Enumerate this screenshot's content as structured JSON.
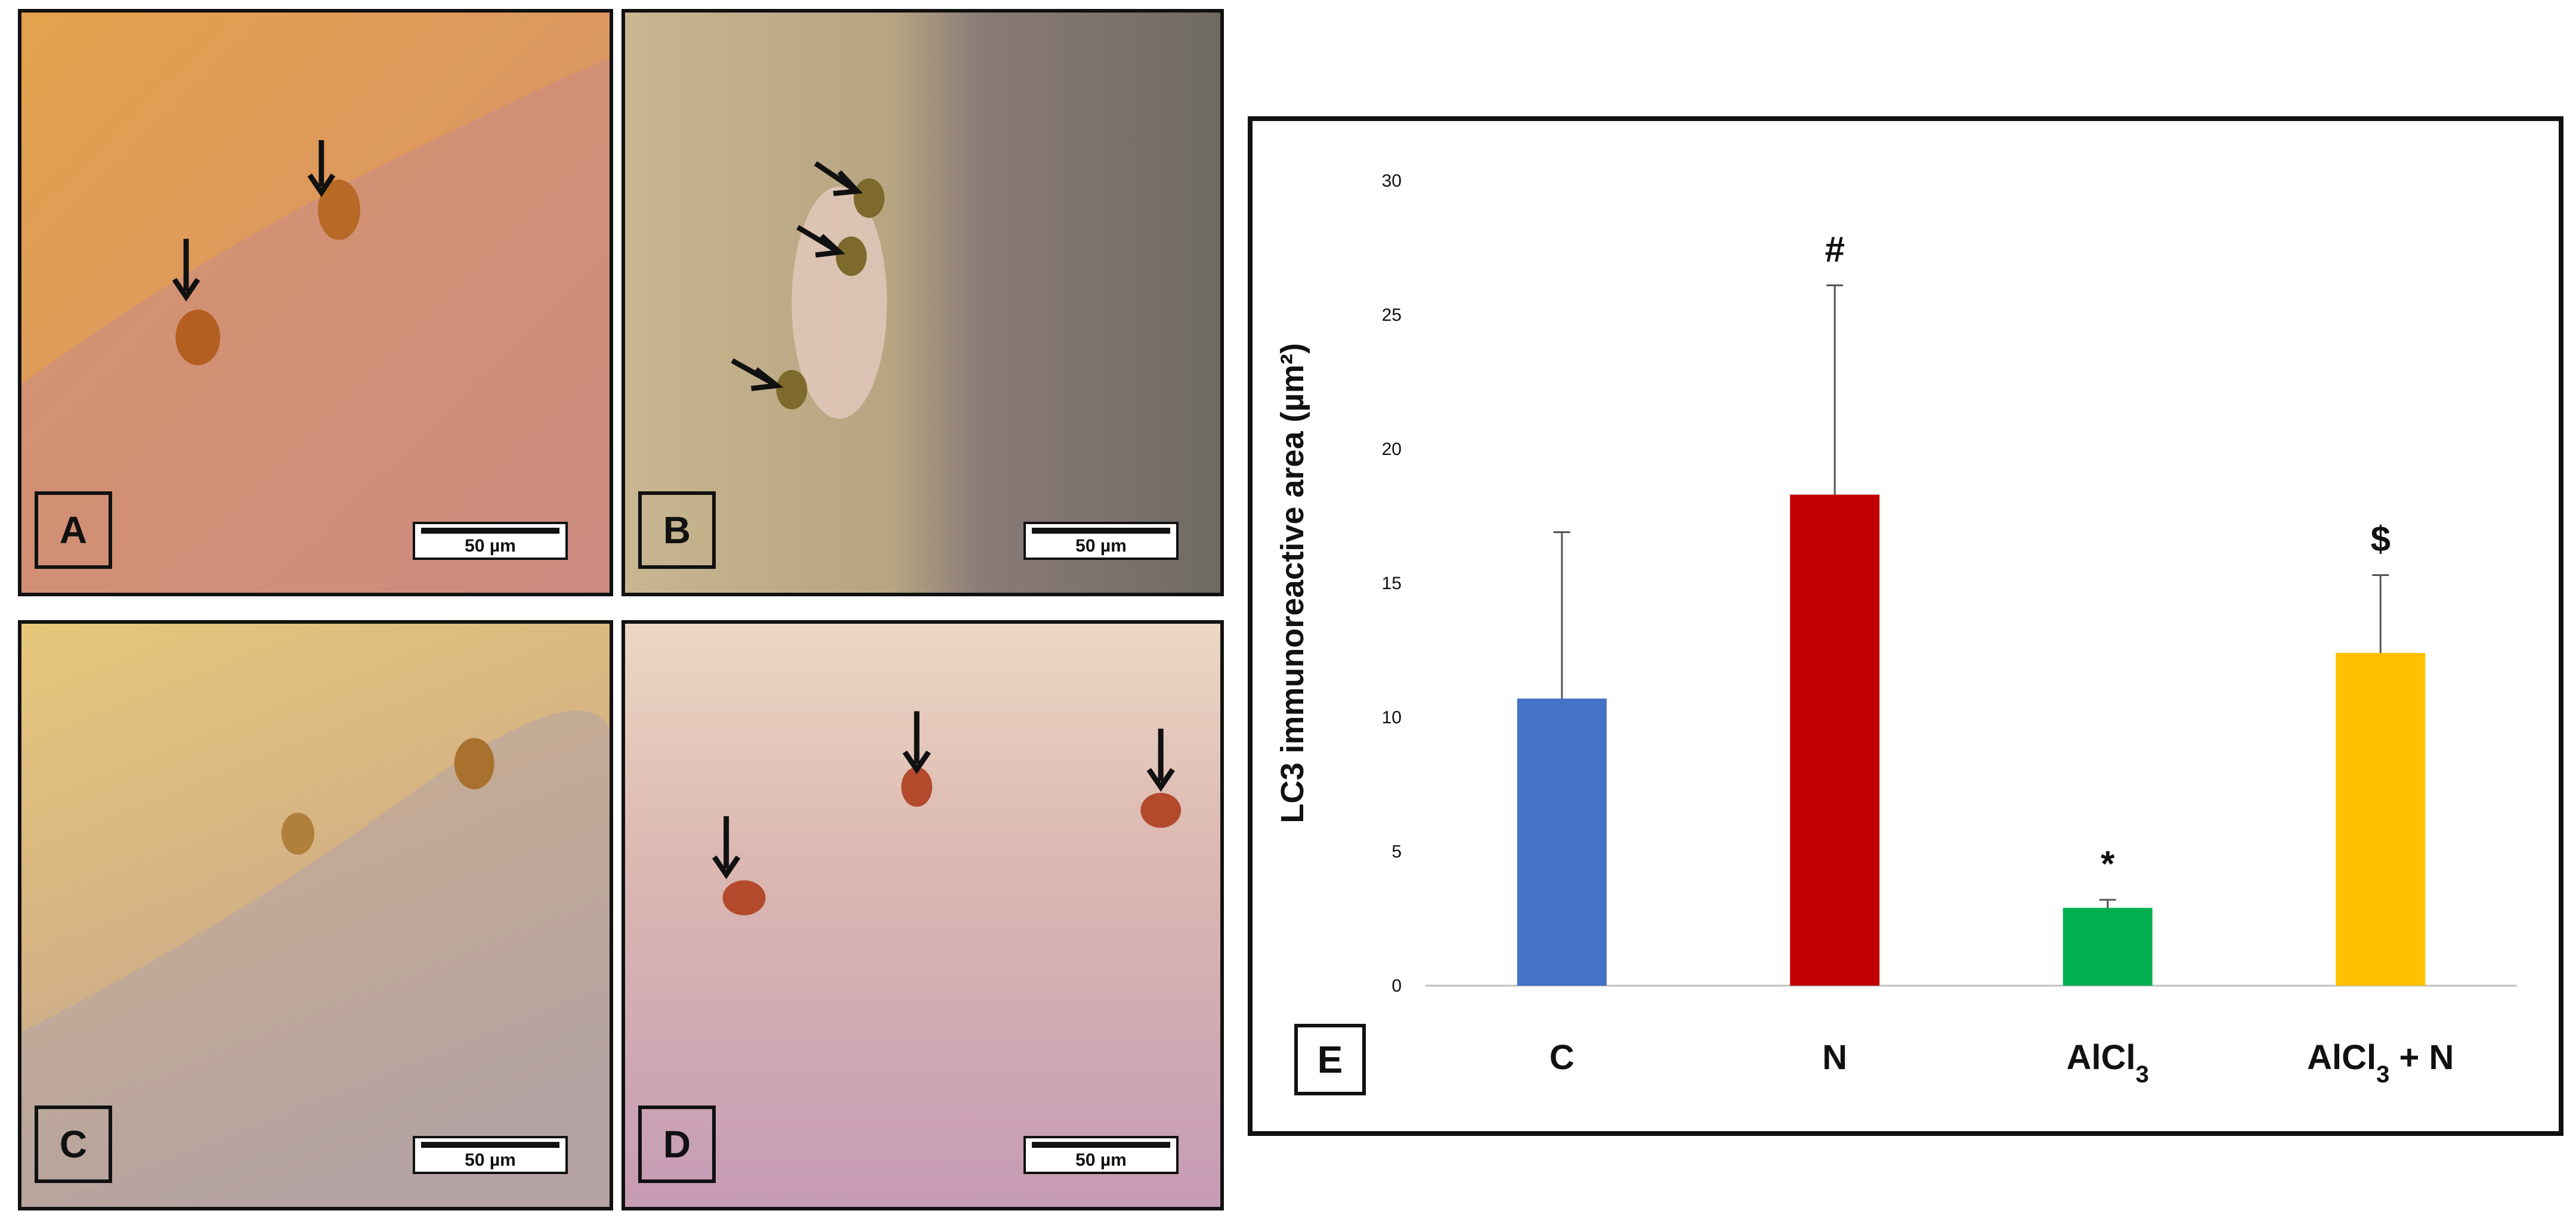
{
  "panels": [
    {
      "letter": "A",
      "scale": "50 µm"
    },
    {
      "letter": "B",
      "scale": "50 µm"
    },
    {
      "letter": "C",
      "scale": "50 µm"
    },
    {
      "letter": "D",
      "scale": "50 µm"
    }
  ],
  "chart_letter": "E",
  "chart_data": {
    "type": "bar",
    "title": "",
    "xlabel": "",
    "ylabel": "LC3 immunoreactive area (µm²)",
    "ylim": [
      0,
      30
    ],
    "yticks": [
      0,
      5,
      10,
      15,
      20,
      25,
      30
    ],
    "grid": false,
    "legend": "none",
    "categories": [
      "C",
      "N",
      "AlCl3",
      "AlCl3 + N"
    ],
    "values": [
      10.7,
      18.3,
      2.9,
      12.4
    ],
    "errors": [
      6.2,
      7.8,
      0.3,
      2.9
    ],
    "annotations": [
      "",
      "#",
      "*",
      "$"
    ],
    "colors": [
      "#4472C4",
      "#C00000",
      "#00B050",
      "#FFC000"
    ]
  }
}
